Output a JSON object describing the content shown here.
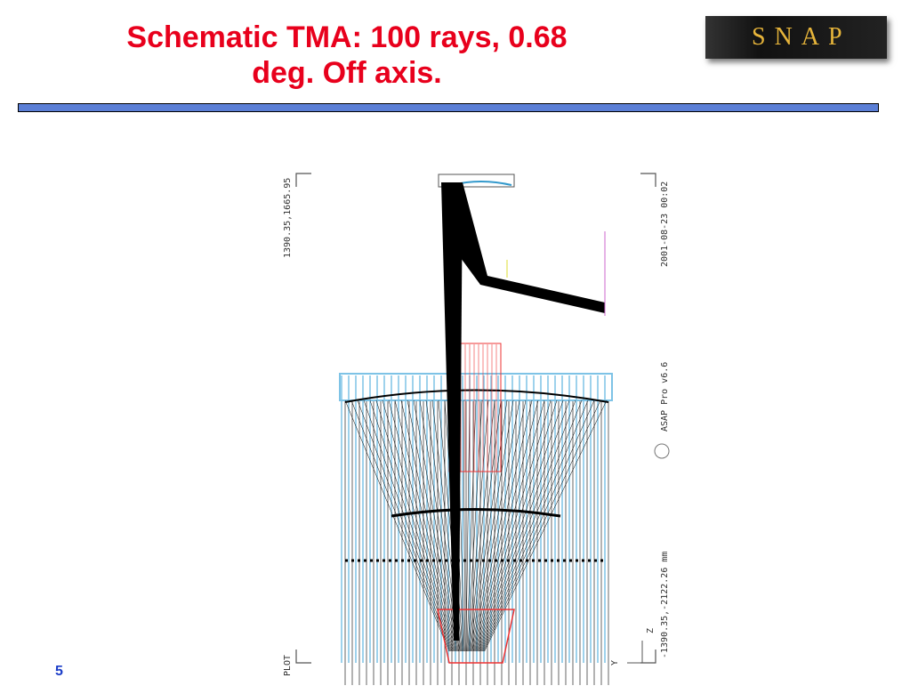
{
  "title": {
    "lines": [
      "Schematic TMA:  100 rays, 0.68",
      "deg. Off axis."
    ]
  },
  "logo": {
    "text": "SNAP"
  },
  "plot": {
    "corner_top_left": "1390.35,1665.95",
    "date": "2001-08-23  00:02",
    "software": "ASAP  Pro  v6.6",
    "corner_bottom": "-1390.35,-2122.26 mm",
    "plot_label": "PLOT",
    "axis_z": "Z",
    "axis_y": "Y"
  },
  "slide_number": "5"
}
